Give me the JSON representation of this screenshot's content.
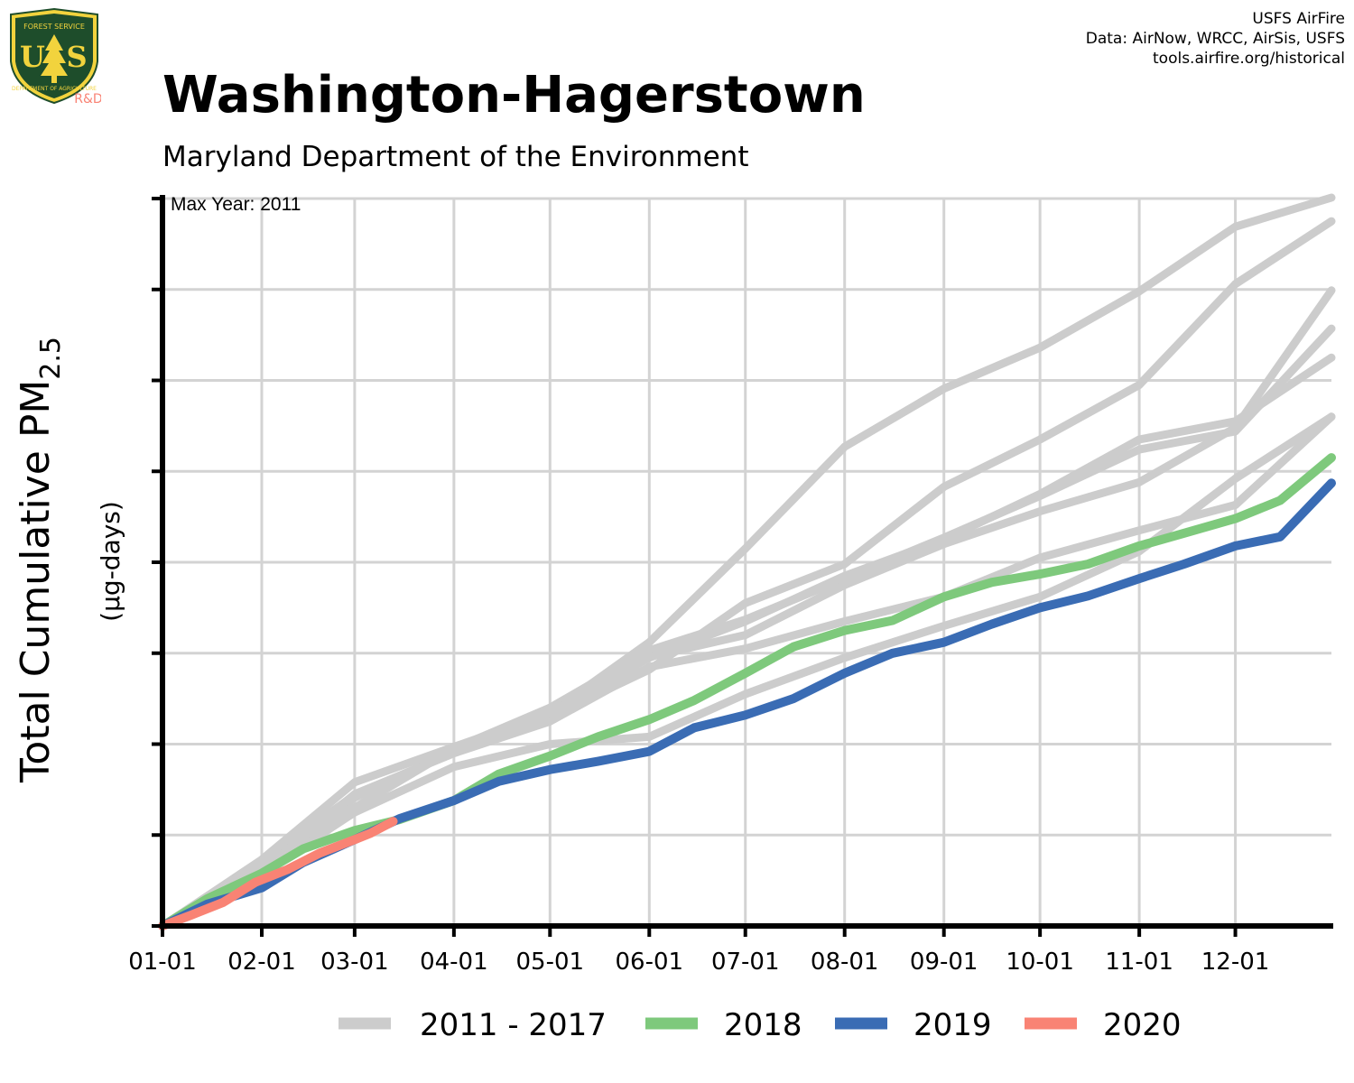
{
  "header": {
    "title": "Washington-Hagerstown",
    "subtitle": "Maryland Department of the Environment",
    "credits": [
      "USFS AirFire",
      "Data: AirNow, WRCC, AirSis, USFS",
      "tools.airfire.org/historical"
    ],
    "logo": {
      "top_text": "FOREST SERVICE",
      "bottom_text": "DEPARTMENT OF AGRICULTURE",
      "letters_left": "U",
      "letters_right": "S",
      "badge": "R&D"
    }
  },
  "colors": {
    "history": "#cccccc",
    "y2018": "#7ec97c",
    "y2019": "#3a6cb4",
    "y2020": "#f98374",
    "grid": "#d3d3d3",
    "axis": "#000000",
    "logo_green": "#1e4d2b",
    "logo_yellow": "#f2d33d",
    "badge": "#f98374"
  },
  "chart_data": {
    "type": "line",
    "title": "Washington-Hagerstown",
    "subtitle": "Maryland Department of the Environment",
    "xlabel": "",
    "ylabel": "Total Cumulative PM2.5",
    "ylabel_main": "Total Cumulative PM",
    "ylabel_sub": "2.5",
    "ylabel_unit": "(µg-days)",
    "annotation": "Max Year: 2011",
    "x_unit": "day of year",
    "xlim": [
      1,
      366
    ],
    "ylim": [
      0,
      8
    ],
    "x_ticks": [
      1,
      32,
      61,
      92,
      122,
      153,
      183,
      214,
      245,
      275,
      306,
      336
    ],
    "x_tick_labels": [
      "01-01",
      "02-01",
      "03-01",
      "04-01",
      "05-01",
      "06-01",
      "07-01",
      "08-01",
      "09-01",
      "10-01",
      "11-01",
      "12-01"
    ],
    "y_tick_labels": [],
    "y_ticks": [
      0,
      1,
      2,
      3,
      4,
      5,
      6,
      7,
      8
    ],
    "grid": true,
    "legend_position": "bottom",
    "legend": [
      {
        "label": "2011 - 2017",
        "color": "#cccccc"
      },
      {
        "label": "2018",
        "color": "#7ec97c"
      },
      {
        "label": "2019",
        "color": "#3a6cb4"
      },
      {
        "label": "2020",
        "color": "#f98374"
      }
    ],
    "series": [
      {
        "group": "history",
        "color": "#cccccc",
        "x": [
          1,
          32,
          61,
          92,
          122,
          153,
          183,
          214,
          245,
          275,
          306,
          336,
          366
        ],
        "y": [
          0,
          0.73,
          1.58,
          1.97,
          2.34,
          3.12,
          4.15,
          5.27,
          5.91,
          6.36,
          6.98,
          7.69,
          8.01
        ]
      },
      {
        "group": "history",
        "color": "#cccccc",
        "x": [
          1,
          32,
          61,
          92,
          122,
          153,
          183,
          214,
          245,
          275,
          306,
          336,
          366
        ],
        "y": [
          0,
          0.65,
          1.42,
          1.92,
          2.3,
          2.82,
          3.55,
          3.98,
          4.83,
          5.35,
          5.95,
          7.06,
          7.75
        ]
      },
      {
        "group": "history",
        "color": "#cccccc",
        "x": [
          1,
          32,
          61,
          92,
          122,
          153,
          183,
          214,
          245,
          275,
          306,
          336,
          366
        ],
        "y": [
          0,
          0.68,
          1.3,
          1.95,
          2.4,
          3.03,
          3.37,
          3.82,
          4.27,
          4.73,
          5.24,
          5.44,
          6.57
        ]
      },
      {
        "group": "history",
        "color": "#cccccc",
        "x": [
          1,
          32,
          61,
          92,
          122,
          153,
          183,
          214,
          245,
          275,
          306,
          336,
          366
        ],
        "y": [
          0,
          0.7,
          1.44,
          1.91,
          2.28,
          2.96,
          3.2,
          3.75,
          4.2,
          4.56,
          4.88,
          5.48,
          6.99
        ]
      },
      {
        "group": "history",
        "color": "#cccccc",
        "x": [
          1,
          32,
          61,
          92,
          122,
          153,
          183,
          214,
          245,
          275,
          306,
          336,
          366
        ],
        "y": [
          0,
          0.62,
          1.41,
          1.92,
          2.35,
          2.95,
          3.35,
          3.85,
          4.25,
          4.75,
          5.35,
          5.55,
          6.25
        ]
      },
      {
        "group": "history",
        "color": "#cccccc",
        "x": [
          1,
          32,
          61,
          92,
          122,
          153,
          183,
          214,
          245,
          275,
          306,
          336,
          366
        ],
        "y": [
          0,
          0.6,
          1.45,
          1.9,
          2.25,
          2.85,
          3.05,
          3.35,
          3.62,
          4.05,
          4.35,
          4.63,
          5.6
        ]
      },
      {
        "group": "history",
        "color": "#cccccc",
        "x": [
          1,
          32,
          61,
          92,
          122,
          153,
          183,
          214,
          245,
          275,
          306,
          336,
          366
        ],
        "y": [
          0,
          0.58,
          1.25,
          1.75,
          2.0,
          2.08,
          2.55,
          2.95,
          3.3,
          3.62,
          4.12,
          4.92,
          5.6
        ]
      },
      {
        "group": "2018",
        "color": "#7ec97c",
        "x": [
          1,
          15,
          32,
          45,
          61,
          75,
          92,
          106,
          122,
          137,
          153,
          167,
          183,
          198,
          214,
          229,
          245,
          260,
          275,
          290,
          306,
          320,
          336,
          350,
          366
        ],
        "y": [
          0,
          0.3,
          0.58,
          0.85,
          1.05,
          1.17,
          1.38,
          1.67,
          1.87,
          2.08,
          2.27,
          2.48,
          2.78,
          3.07,
          3.25,
          3.36,
          3.62,
          3.78,
          3.87,
          3.98,
          4.18,
          4.32,
          4.48,
          4.68,
          5.15
        ]
      },
      {
        "group": "2019",
        "color": "#3a6cb4",
        "x": [
          1,
          15,
          32,
          45,
          61,
          75,
          92,
          106,
          122,
          137,
          153,
          167,
          183,
          198,
          214,
          229,
          245,
          260,
          275,
          290,
          306,
          320,
          336,
          350,
          366
        ],
        "y": [
          0,
          0.24,
          0.42,
          0.7,
          0.95,
          1.18,
          1.38,
          1.59,
          1.72,
          1.81,
          1.92,
          2.18,
          2.32,
          2.5,
          2.78,
          3.0,
          3.12,
          3.32,
          3.5,
          3.63,
          3.82,
          3.98,
          4.18,
          4.28,
          4.87
        ]
      },
      {
        "group": "2020",
        "color": "#f98374",
        "x": [
          1,
          10,
          20,
          30,
          40,
          50,
          61,
          66,
          73
        ],
        "y": [
          0,
          0.12,
          0.26,
          0.48,
          0.62,
          0.8,
          0.95,
          1.02,
          1.15
        ]
      }
    ]
  }
}
